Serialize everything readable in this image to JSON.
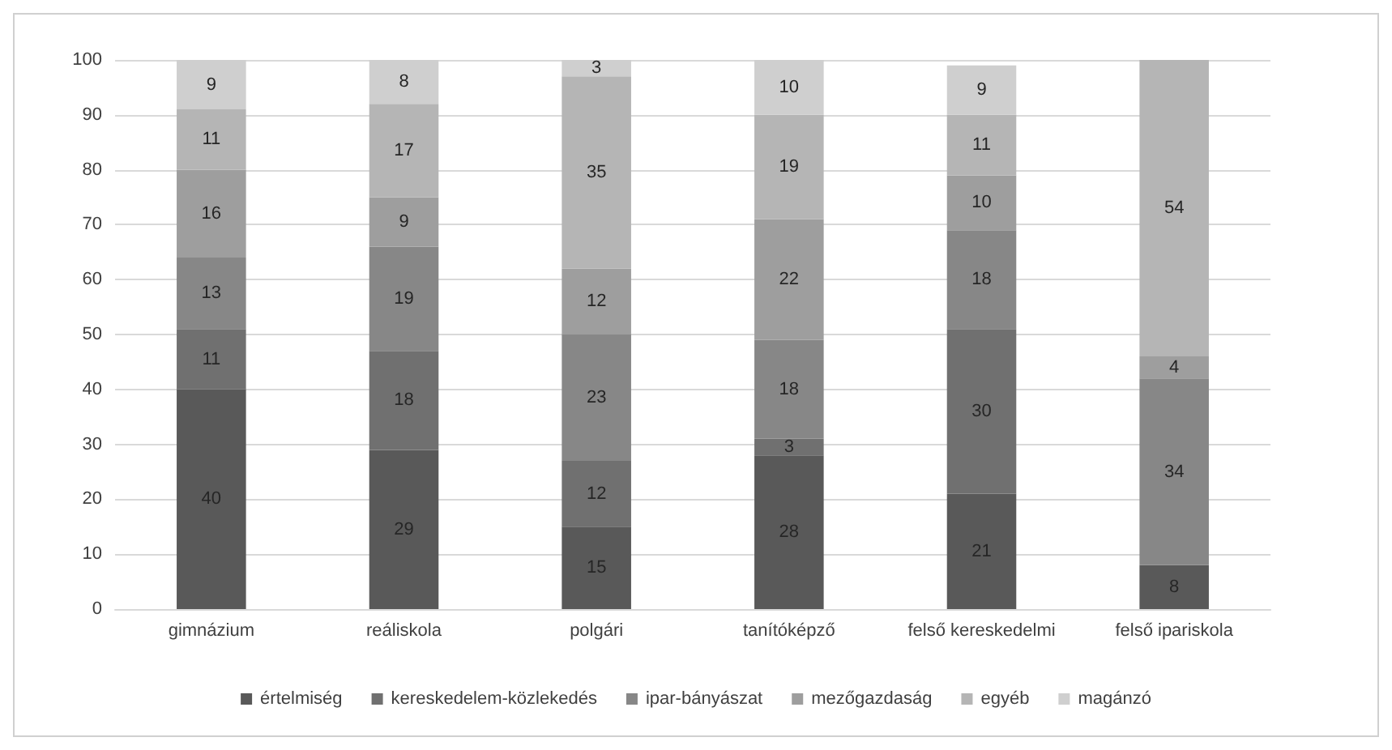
{
  "chart_data": {
    "type": "bar",
    "stacked": true,
    "categories": [
      "gimnázium",
      "reáliskola",
      "polgári",
      "tanítóképző",
      "felső kereskedelmi",
      "felső ipariskola"
    ],
    "series": [
      {
        "name": "értelmiség",
        "color": "#595959",
        "values": [
          40,
          29,
          15,
          28,
          21,
          8
        ]
      },
      {
        "name": "kereskedelem-közlekedés",
        "color": "#707070",
        "values": [
          11,
          18,
          12,
          3,
          30,
          null
        ]
      },
      {
        "name": "ipar-bányászat",
        "color": "#878787",
        "values": [
          13,
          19,
          23,
          18,
          18,
          34
        ]
      },
      {
        "name": "mezőgazdaság",
        "color": "#9e9e9e",
        "values": [
          16,
          9,
          12,
          22,
          10,
          4
        ]
      },
      {
        "name": "egyéb",
        "color": "#b5b5b5",
        "values": [
          11,
          17,
          35,
          19,
          11,
          54
        ]
      },
      {
        "name": "magánzó",
        "color": "#cfcfcf",
        "values": [
          9,
          8,
          3,
          10,
          9,
          null
        ]
      }
    ],
    "ylim": [
      0,
      100
    ],
    "yticks": [
      0,
      10,
      20,
      30,
      40,
      50,
      60,
      70,
      80,
      90,
      100
    ],
    "grid": "y",
    "legend": "bottom",
    "data_labels": true
  }
}
